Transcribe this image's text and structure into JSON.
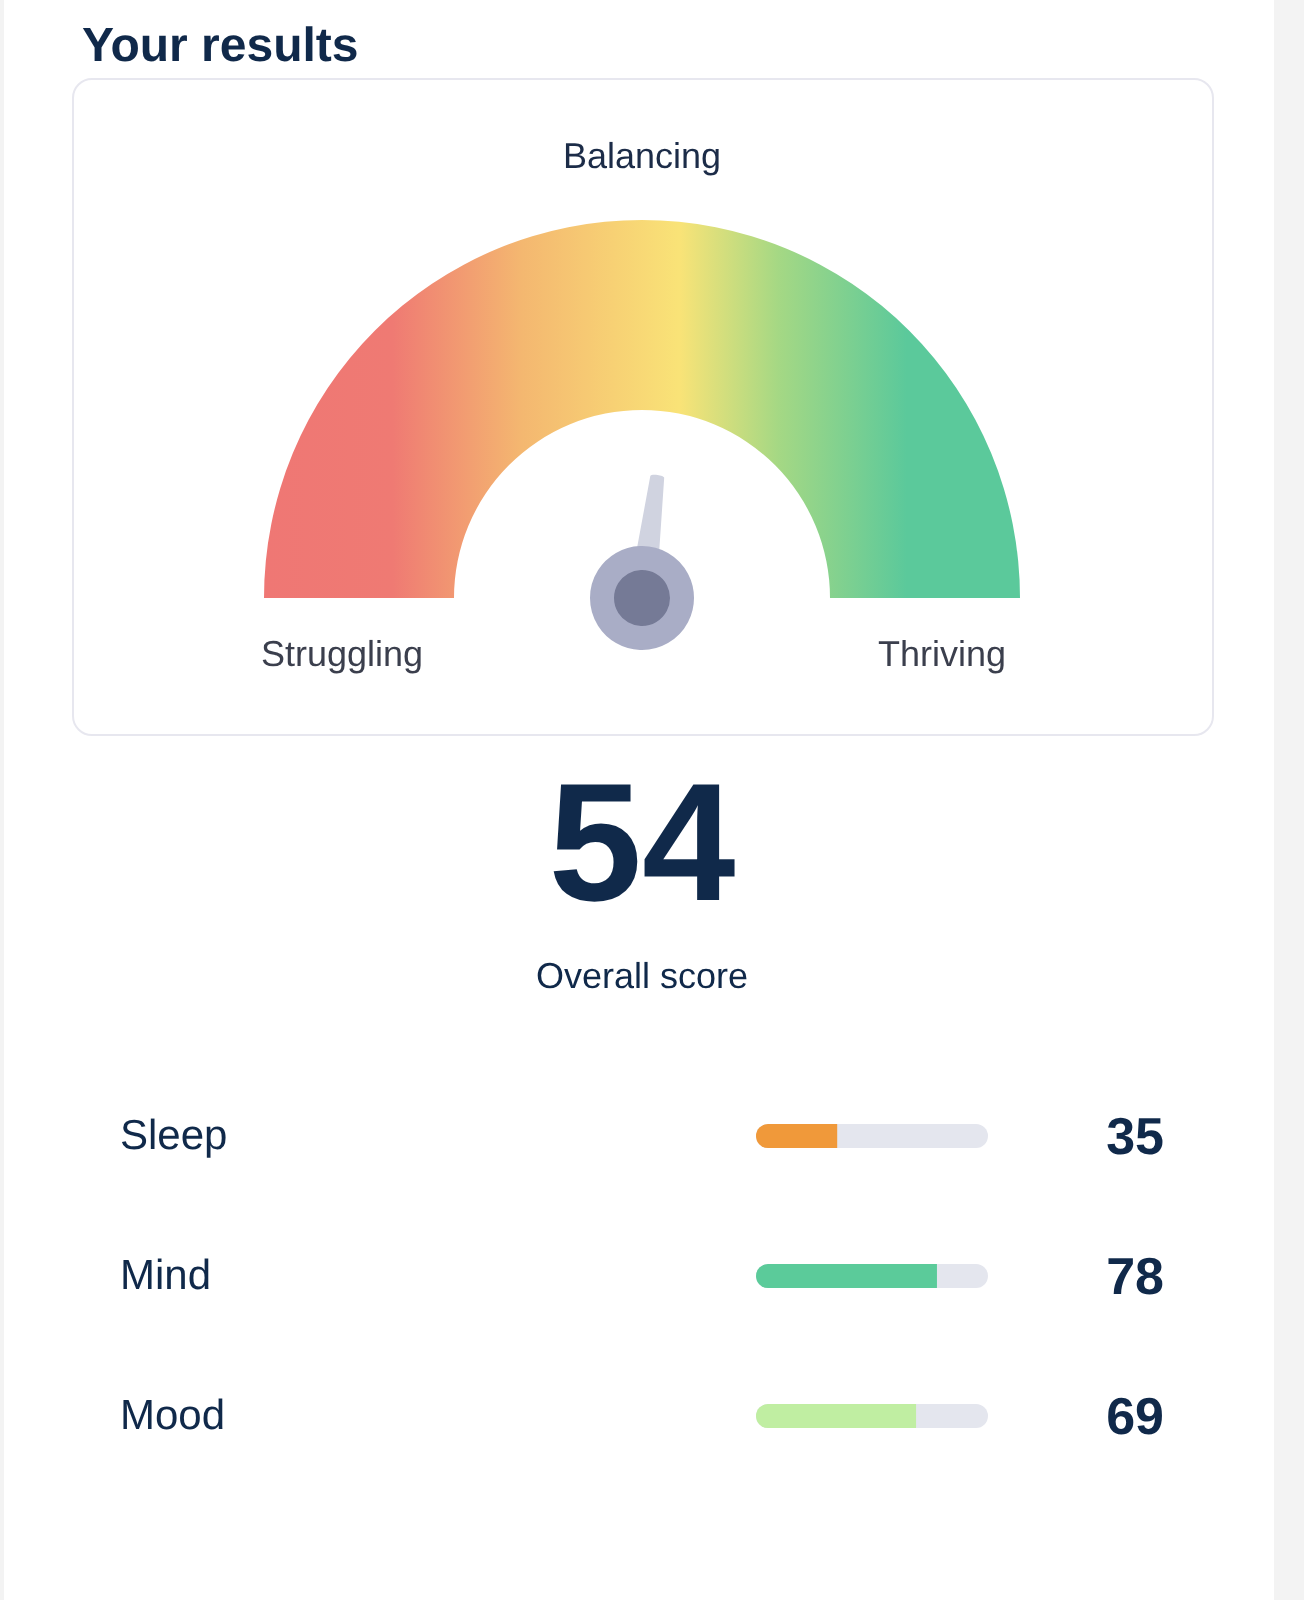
{
  "chart_data": [
    {
      "type": "other",
      "title": "Your results",
      "values": [
        54
      ],
      "xlabel": "Overall score",
      "annotations": [
        "Struggling",
        "Balancing",
        "Thriving"
      ],
      "data_labels": true
    },
    {
      "type": "bar",
      "orientation": "horizontal",
      "categories": [
        "Sleep",
        "Mind",
        "Mood"
      ],
      "values": [
        35,
        78,
        69
      ],
      "colors": [
        "#f0993a",
        "#5bcb9a",
        "#c0eea2"
      ],
      "xlim": [
        0,
        100
      ],
      "tick_labels": "y",
      "data_labels": true
    }
  ]
}
